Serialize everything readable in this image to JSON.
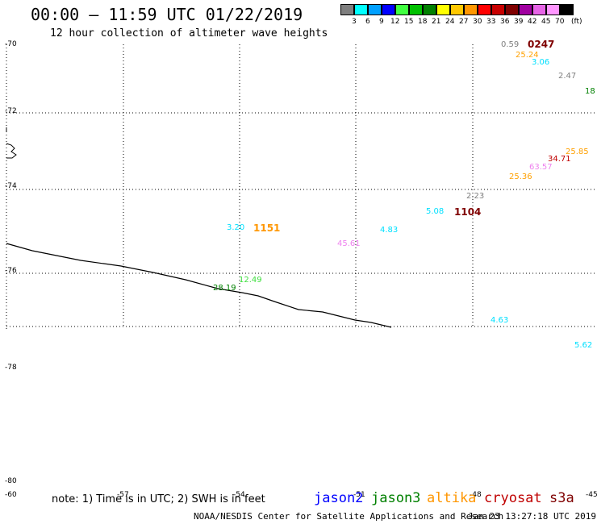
{
  "header": {
    "title": "00:00 – 11:59 UTC 01/22/2019",
    "subtitle": "12 hour collection of altimeter wave heights"
  },
  "colorbar": {
    "unit": "(ft)",
    "bins": [
      {
        "color": "#7f7f7f",
        "label": "3"
      },
      {
        "color": "#00ffff",
        "label": "6"
      },
      {
        "color": "#00a0ff",
        "label": "9"
      },
      {
        "color": "#0000ff",
        "label": "12"
      },
      {
        "color": "#40ff40",
        "label": "15"
      },
      {
        "color": "#00c000",
        "label": "18"
      },
      {
        "color": "#008000",
        "label": "21"
      },
      {
        "color": "#ffff00",
        "label": "24"
      },
      {
        "color": "#ffc800",
        "label": "27"
      },
      {
        "color": "#ff9600",
        "label": "30"
      },
      {
        "color": "#ff0000",
        "label": "33"
      },
      {
        "color": "#c80000",
        "label": "36"
      },
      {
        "color": "#7f0000",
        "label": "39"
      },
      {
        "color": "#a000a0",
        "label": "42"
      },
      {
        "color": "#e664e6",
        "label": "45"
      },
      {
        "color": "#ff96ff",
        "label": "70"
      },
      {
        "color": "#000000",
        "label": ""
      }
    ]
  },
  "axes": {
    "lat_labels": [
      "-70",
      "-72",
      "-74",
      "-76",
      "-78",
      "-80",
      "-60"
    ],
    "lon_labels": [
      "-57",
      "-54",
      "-51",
      "-48",
      "-45"
    ]
  },
  "observations": [
    {
      "text": "0.59",
      "color": "#7f7f7f"
    },
    {
      "text": "25.24",
      "color": "#ffa000"
    },
    {
      "text": "3.06",
      "color": "#00e0ff"
    },
    {
      "text": "2.47",
      "color": "#7f7f7f"
    },
    {
      "text": "18",
      "color": "#008000"
    },
    {
      "text": "25.85",
      "color": "#ffa000"
    },
    {
      "text": "34.71",
      "color": "#c00000"
    },
    {
      "text": "63.57",
      "color": "#ee82ee"
    },
    {
      "text": "25.36",
      "color": "#ffa000"
    },
    {
      "text": "2.23",
      "color": "#7f7f7f"
    },
    {
      "text": "5.08",
      "color": "#00e0ff"
    },
    {
      "text": "4.83",
      "color": "#00e0ff"
    },
    {
      "text": "45.61",
      "color": "#ee82ee"
    },
    {
      "text": "3.20",
      "color": "#00e0ff"
    },
    {
      "text": "12.49",
      "color": "#40e040"
    },
    {
      "text": "28.19",
      "color": "#008000"
    },
    {
      "text": "4.63",
      "color": "#00e0ff"
    },
    {
      "text": "5.62",
      "color": "#00e0ff"
    }
  ],
  "pass_times": [
    {
      "text": "0247",
      "color": "#7f0000"
    },
    {
      "text": "1104",
      "color": "#7f0000"
    },
    {
      "text": "1151",
      "color": "#ff9600"
    }
  ],
  "footer": {
    "note": "note: 1) Time is in UTC; 2) SWH is in feet",
    "satellites": [
      {
        "name": "jason2",
        "color": "#0000ff"
      },
      {
        "name": "jason3",
        "color": "#008000"
      },
      {
        "name": "altika",
        "color": "#ff9600"
      },
      {
        "name": "cryosat",
        "color": "#c00000"
      },
      {
        "name": "s3a",
        "color": "#7f0000"
      }
    ],
    "credit": "NOAA/NESDIS Center for Satellite Applications and Research",
    "issued": "Jan 23 13:27:18 UTC 2019"
  }
}
